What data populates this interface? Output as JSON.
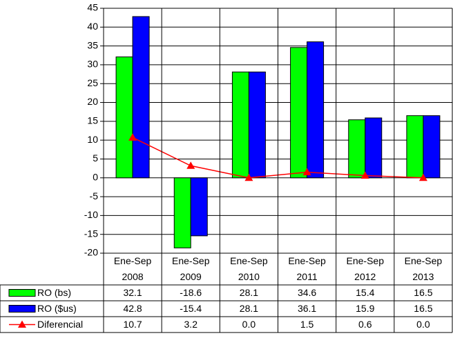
{
  "chart_data": {
    "type": "bar",
    "categories": [
      [
        "Ene-Sep",
        "2008"
      ],
      [
        "Ene-Sep",
        "2009"
      ],
      [
        "Ene-Sep",
        "2010"
      ],
      [
        "Ene-Sep",
        "2011"
      ],
      [
        "Ene-Sep",
        "2012"
      ],
      [
        "Ene-Sep",
        "2013"
      ]
    ],
    "series": [
      {
        "name": "RO (bs)",
        "kind": "bar",
        "color": "#00ff00",
        "values": [
          32.1,
          -18.6,
          28.1,
          34.6,
          15.4,
          16.5
        ],
        "labels": [
          "32.1",
          "-18.6",
          "28.1",
          "34.6",
          "15.4",
          "16.5"
        ]
      },
      {
        "name": "RO ($us)",
        "kind": "bar",
        "color": "#0000ff",
        "values": [
          42.8,
          -15.4,
          28.1,
          36.1,
          15.9,
          16.5
        ],
        "labels": [
          "42.8",
          "-15.4",
          "28.1",
          "36.1",
          "15.9",
          "16.5"
        ]
      },
      {
        "name": "Diferencial",
        "kind": "line",
        "marker": "triangle",
        "color": "#ff0000",
        "values": [
          10.7,
          3.2,
          0.0,
          1.5,
          0.6,
          0.0
        ],
        "labels": [
          "10.7",
          "3.2",
          "0.0",
          "1.5",
          "0.6",
          "0.0"
        ]
      }
    ],
    "ylim": [
      -20,
      45
    ],
    "yticks": [
      45,
      40,
      35,
      30,
      25,
      20,
      15,
      10,
      5,
      0,
      -5,
      -10,
      -15,
      -20
    ],
    "grid": true,
    "legend": "data-table-left",
    "title": "",
    "xlabel": "",
    "ylabel": ""
  }
}
